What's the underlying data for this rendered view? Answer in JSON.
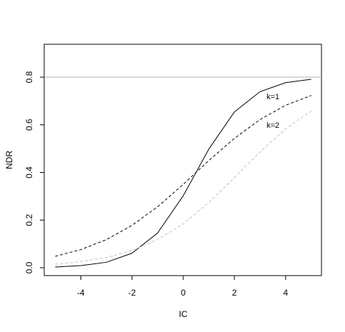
{
  "chart_data": {
    "type": "line",
    "x": [
      -5,
      -4,
      -3,
      -2,
      -1,
      0,
      1,
      2,
      3,
      4,
      5
    ],
    "series": [
      {
        "color": "#000000",
        "dash": "solid",
        "values": [
          0.003,
          0.009,
          0.023,
          0.061,
          0.146,
          0.302,
          0.498,
          0.654,
          0.739,
          0.777,
          0.791
        ]
      },
      {
        "color": "#000000",
        "dash": "dashed",
        "values": [
          0.048,
          0.076,
          0.118,
          0.178,
          0.256,
          0.35,
          0.45,
          0.543,
          0.622,
          0.682,
          0.723
        ]
      },
      {
        "color": "#c0c0c0",
        "dash": "dashed",
        "values": [
          0.015,
          0.026,
          0.043,
          0.072,
          0.118,
          0.184,
          0.273,
          0.378,
          0.486,
          0.583,
          0.658
        ]
      }
    ],
    "hline": 0.8,
    "annotations": [
      "k=1",
      "k=2"
    ],
    "x_label": "IC",
    "y_label": "NDR",
    "xlim": [
      -5.43,
      5.4
    ],
    "ylim": [
      -0.033,
      0.938
    ],
    "xticks": [
      -4,
      -2,
      0,
      2,
      4
    ],
    "yticks": [
      {
        "value": 0,
        "label": "0.0"
      },
      0.2,
      0.4,
      0.6,
      0.8
    ]
  }
}
